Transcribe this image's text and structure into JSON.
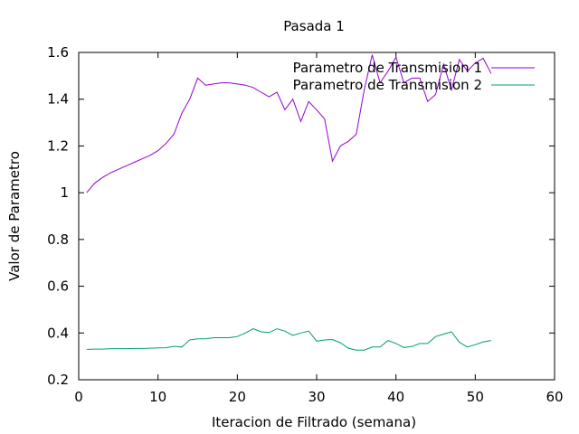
{
  "chart_data": {
    "type": "line",
    "title": "Pasada 1",
    "xlabel": "Iteracion de Filtrado (semana)",
    "ylabel": "Valor de Parametro",
    "xlim": [
      0,
      60
    ],
    "ylim": [
      0.2,
      1.6
    ],
    "xticks": [
      0,
      10,
      20,
      30,
      40,
      50,
      60
    ],
    "yticks": [
      0.2,
      0.4,
      0.6,
      0.8,
      1,
      1.2,
      1.4,
      1.6
    ],
    "grid": false,
    "legend_position": "top-right",
    "series": [
      {
        "name": "Parametro de Transmision 1",
        "color": "#9400d3",
        "x": [
          1,
          2,
          3,
          4,
          5,
          6,
          7,
          8,
          9,
          10,
          11,
          12,
          13,
          14,
          15,
          16,
          17,
          18,
          19,
          20,
          21,
          22,
          23,
          24,
          25,
          26,
          27,
          28,
          29,
          30,
          31,
          32,
          33,
          34,
          35,
          36,
          37,
          38,
          39,
          40,
          41,
          42,
          43,
          44,
          45,
          46,
          47,
          48,
          49,
          50,
          51,
          52
        ],
        "y": [
          1.0,
          1.04,
          1.065,
          1.085,
          1.1,
          1.115,
          1.13,
          1.145,
          1.16,
          1.18,
          1.21,
          1.25,
          1.34,
          1.4,
          1.49,
          1.46,
          1.465,
          1.47,
          1.47,
          1.465,
          1.46,
          1.45,
          1.43,
          1.41,
          1.43,
          1.355,
          1.4,
          1.305,
          1.39,
          1.355,
          1.315,
          1.135,
          1.2,
          1.22,
          1.25,
          1.44,
          1.59,
          1.47,
          1.52,
          1.58,
          1.47,
          1.49,
          1.49,
          1.39,
          1.42,
          1.55,
          1.44,
          1.57,
          1.52,
          1.555,
          1.575,
          1.51
        ]
      },
      {
        "name": "Parametro de Transmision 2",
        "color": "#009e73",
        "x": [
          1,
          2,
          3,
          4,
          5,
          6,
          7,
          8,
          9,
          10,
          11,
          12,
          13,
          14,
          15,
          16,
          17,
          18,
          19,
          20,
          21,
          22,
          23,
          24,
          25,
          26,
          27,
          28,
          29,
          30,
          31,
          32,
          33,
          34,
          35,
          36,
          37,
          38,
          39,
          40,
          41,
          42,
          43,
          44,
          45,
          46,
          47,
          48,
          49,
          50,
          51,
          52
        ],
        "y": [
          0.33,
          0.331,
          0.331,
          0.333,
          0.333,
          0.333,
          0.334,
          0.334,
          0.335,
          0.336,
          0.337,
          0.343,
          0.34,
          0.37,
          0.375,
          0.375,
          0.38,
          0.38,
          0.38,
          0.385,
          0.4,
          0.418,
          0.405,
          0.402,
          0.418,
          0.408,
          0.39,
          0.4,
          0.408,
          0.365,
          0.37,
          0.372,
          0.358,
          0.335,
          0.327,
          0.327,
          0.34,
          0.34,
          0.368,
          0.355,
          0.338,
          0.342,
          0.355,
          0.355,
          0.385,
          0.395,
          0.405,
          0.36,
          0.34,
          0.35,
          0.362,
          0.368
        ]
      }
    ]
  }
}
